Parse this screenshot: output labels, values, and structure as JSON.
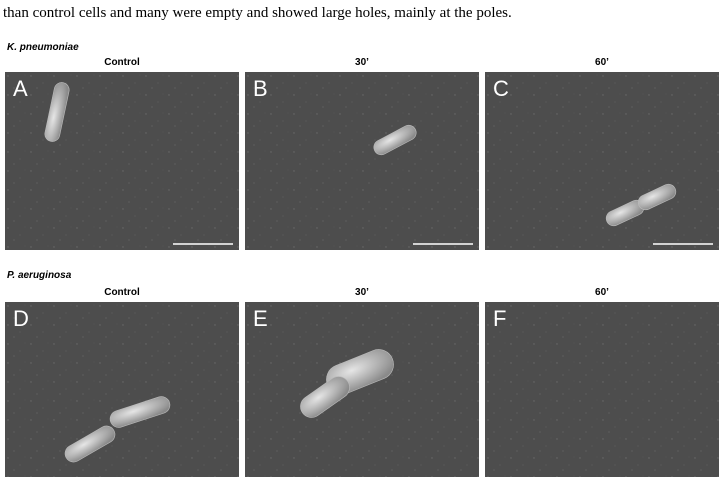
{
  "text": "than control cells and many were empty and showed large holes, mainly at the poles.",
  "figure": {
    "rows": [
      {
        "species": "K. pneumoniae",
        "columns": [
          "Control",
          "30’",
          "60’"
        ],
        "panels": [
          "A",
          "B",
          "C"
        ]
      },
      {
        "species": "P. aeruginosa",
        "columns": [
          "Control",
          "30’",
          "60’"
        ],
        "panels": [
          "D",
          "E",
          "F"
        ]
      }
    ]
  }
}
